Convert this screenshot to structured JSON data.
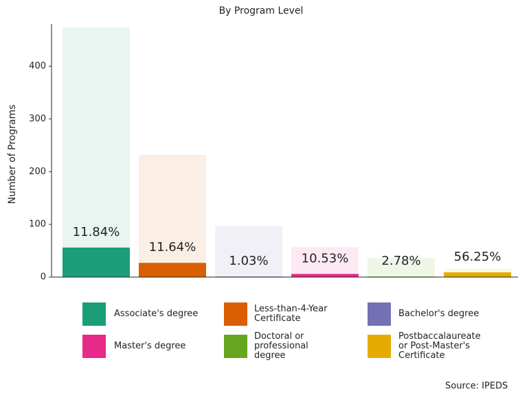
{
  "chart_data": {
    "type": "overlap_bar",
    "title": "By Program Level",
    "y_label": "Number of Programs",
    "categories": [
      "Associate's degree",
      "Less-than-4-Year Certificate",
      "Bachelor's degree",
      "Master's degree",
      "Doctoral or professional degree",
      "Postbaccalaureate or Post-Master's Certificate"
    ],
    "colors": [
      "#1b9e77",
      "#d95f02",
      "#7570b3",
      "#e7298a",
      "#66a61e",
      "#e6ab02"
    ],
    "values": [
      473,
      232,
      97,
      57,
      36,
      16
    ],
    "subset_values": [
      56,
      27,
      1,
      6,
      1,
      9
    ],
    "share_labels": [
      "11.84%",
      "11.64%",
      "1.03%",
      "10.53%",
      "2.78%",
      "56.25%"
    ],
    "ylim": [
      0,
      480
    ],
    "yticks": [
      0,
      100,
      200,
      300,
      400
    ],
    "source": "Source: IPEDS"
  }
}
